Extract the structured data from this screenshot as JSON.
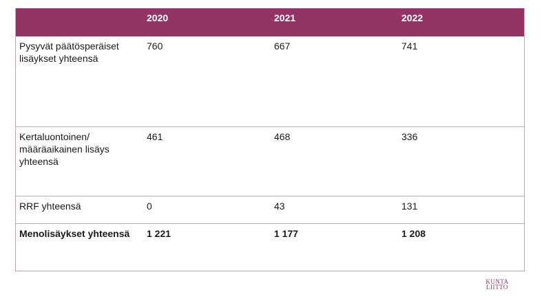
{
  "table": {
    "headers": [
      "",
      "2020",
      "2021",
      "2022"
    ],
    "rows": [
      {
        "label": "Pysyvät päätösperäiset lisäykset yhteensä",
        "values": [
          "760",
          "667",
          "741"
        ]
      },
      {
        "label": "Kertaluontoinen/ määräaikainen lisäys yhteensä",
        "values": [
          "461",
          "468",
          "336"
        ]
      },
      {
        "label": "RRF yhteensä",
        "values": [
          "0",
          "43",
          "131"
        ]
      },
      {
        "label": "Menolisäykset yhteensä",
        "values": [
          "1 221",
          "1 177",
          "1 208"
        ]
      }
    ]
  },
  "logo": {
    "line1": "KUNTA",
    "line2": "LIITTO"
  },
  "colors": {
    "header_bg": "#923564",
    "header_text": "#ffffff",
    "border": "#c9a3b6"
  }
}
